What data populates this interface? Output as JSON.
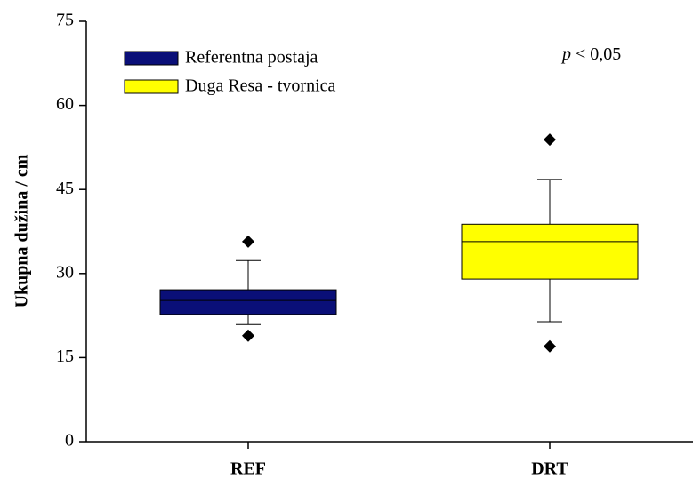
{
  "chart_data": {
    "type": "box",
    "y_label": "Ukupna dužina / cm",
    "annotation": [
      "p",
      "< 0,05"
    ],
    "categories": [
      "REF",
      "DRT"
    ],
    "series": [
      {
        "name": "Referentna postaja",
        "color": "#0a0f78",
        "min": 20.9,
        "q1": 22.7,
        "median": 25.2,
        "q3": 27.1,
        "max": 32.3,
        "outliers": [
          35.7,
          18.9
        ]
      },
      {
        "name": "Duga Resa - tvornica",
        "color": "#ffff00",
        "min": 21.4,
        "q1": 29.0,
        "median": 35.7,
        "q3": 38.8,
        "max": 46.8,
        "outliers": [
          53.9,
          17.0
        ]
      }
    ],
    "ylim": [
      0,
      75
    ],
    "yticks": [
      0,
      15,
      30,
      45,
      60,
      75
    ],
    "legend": "upper left"
  }
}
